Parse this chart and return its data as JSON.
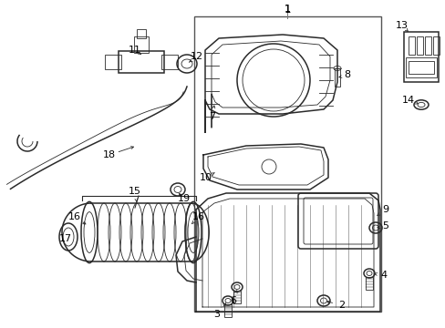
{
  "bg_color": "#ffffff",
  "line_color": "#2a2a2a",
  "label_color": "#000000",
  "figsize": [
    4.89,
    3.6
  ],
  "dpi": 100,
  "lw_main": 1.1,
  "lw_thin": 0.6,
  "label_fs": 7.5
}
